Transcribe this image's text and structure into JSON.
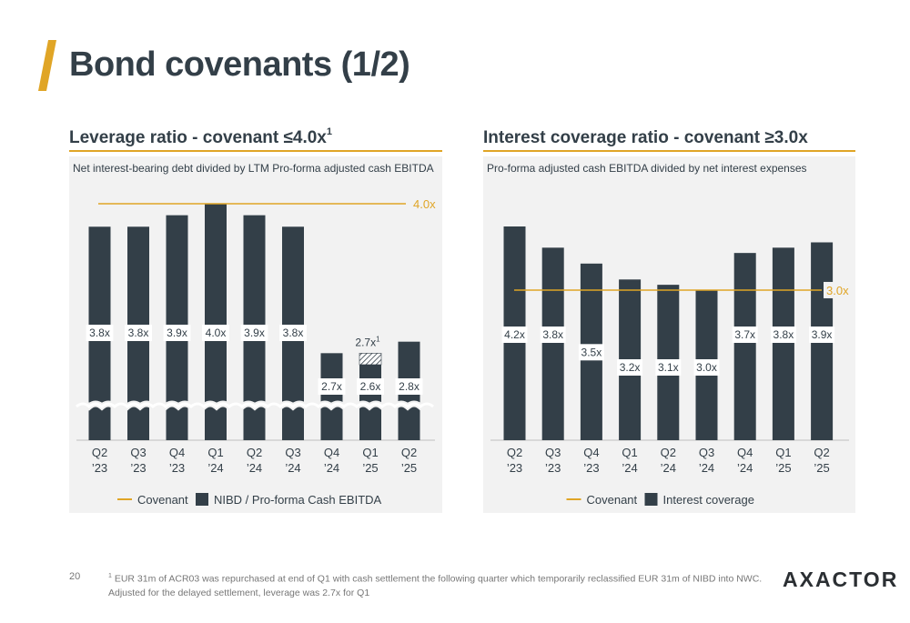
{
  "page": {
    "title": "Bond covenants (1/2)",
    "page_number": "20",
    "footnote_marker": "1",
    "footnote_text": "EUR 31m of ACR03 was repurchased at end of Q1 with cash settlement the following quarter which temporarily reclassified EUR 31m of NIBD into NWC. Adjusted for the delayed settlement, leverage was 2.7x for Q1",
    "logo_text": "AXACTOR"
  },
  "colors": {
    "bar": "#333f48",
    "covenant": "#e0a526",
    "panel_bg": "#f2f2f2",
    "text": "#333f48"
  },
  "chart_data": [
    {
      "type": "bar",
      "title": "Leverage ratio - covenant ≤4.0x",
      "title_sup": "1",
      "subtitle": "Net interest-bearing debt divided by LTM Pro-forma adjusted cash EBITDA",
      "categories": [
        [
          "Q2",
          "’23"
        ],
        [
          "Q3",
          "’23"
        ],
        [
          "Q4",
          "’23"
        ],
        [
          "Q1",
          "’24"
        ],
        [
          "Q2",
          "’24"
        ],
        [
          "Q3",
          "’24"
        ],
        [
          "Q4",
          "’24"
        ],
        [
          "Q1",
          "’25"
        ],
        [
          "Q2",
          "’25"
        ]
      ],
      "series": [
        {
          "name": "NIBD / Pro-forma Cash EBITDA",
          "values": [
            3.8,
            3.8,
            3.9,
            4.0,
            3.9,
            3.8,
            2.7,
            2.6,
            2.8
          ]
        }
      ],
      "labels": [
        "3.8x",
        "3.8x",
        "3.9x",
        "4.0x",
        "3.9x",
        "3.8x",
        "2.7x",
        "2.6x",
        "2.8x"
      ],
      "covenant": {
        "value": 4.0,
        "label": "4.0x",
        "name": "Covenant"
      },
      "adjusted": {
        "index": 7,
        "value": 2.7,
        "label": "2.7x",
        "sup": "1"
      },
      "axis_break": true,
      "legend": [
        "Covenant",
        "NIBD / Pro-forma Cash EBITDA"
      ]
    },
    {
      "type": "bar",
      "title": "Interest coverage ratio - covenant ≥3.0x",
      "subtitle": "Pro-forma adjusted cash EBITDA divided by net interest expenses",
      "categories": [
        [
          "Q2",
          "’23"
        ],
        [
          "Q3",
          "’23"
        ],
        [
          "Q4",
          "’23"
        ],
        [
          "Q1",
          "’24"
        ],
        [
          "Q2",
          "’24"
        ],
        [
          "Q3",
          "’24"
        ],
        [
          "Q4",
          "’24"
        ],
        [
          "Q1",
          "’25"
        ],
        [
          "Q2",
          "’25"
        ]
      ],
      "series": [
        {
          "name": "Interest coverage",
          "values": [
            4.2,
            3.8,
            3.5,
            3.2,
            3.1,
            3.0,
            3.7,
            3.8,
            3.9
          ]
        }
      ],
      "labels": [
        "4.2x",
        "3.8x",
        "3.5x",
        "3.2x",
        "3.1x",
        "3.0x",
        "3.7x",
        "3.8x",
        "3.9x"
      ],
      "covenant": {
        "value": 3.0,
        "label": "3.0x",
        "name": "Covenant"
      },
      "legend": [
        "Covenant",
        "Interest coverage"
      ]
    }
  ]
}
